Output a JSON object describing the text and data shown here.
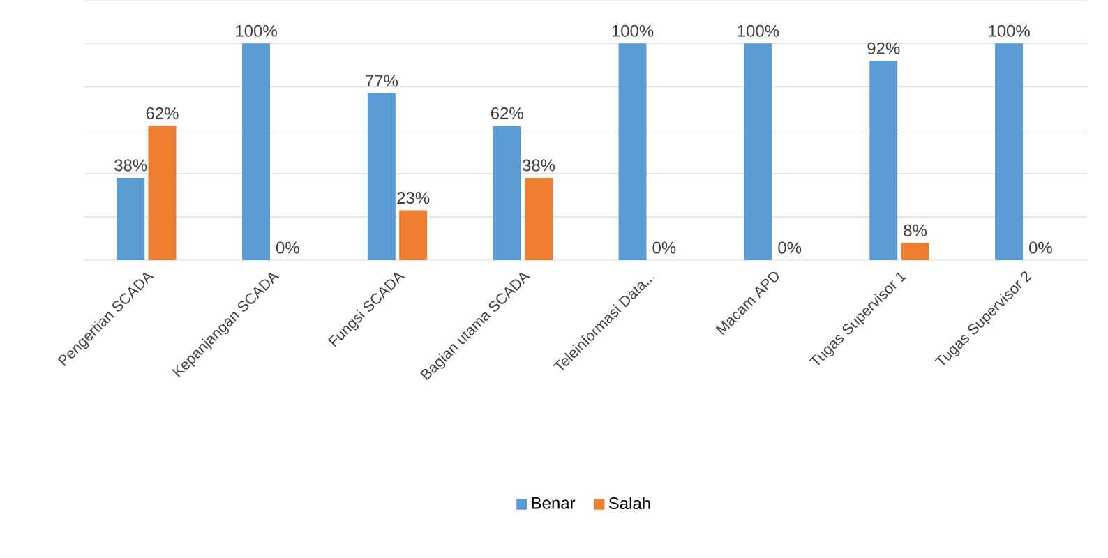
{
  "chart_data": {
    "type": "bar",
    "categories": [
      "Pengertian SCADA",
      "Kepanjangan SCADA",
      "Fungsi SCADA",
      "Bagian utama SCADA",
      "Teleinformasi Data...",
      "Macam APD",
      "Tugas Supervisor 1",
      "Tugas Supervisor 2"
    ],
    "series": [
      {
        "name": "Benar",
        "color": "#5b9bd5",
        "values": [
          38,
          100,
          77,
          62,
          100,
          100,
          92,
          100
        ],
        "value_labels": [
          "38%",
          "100%",
          "77%",
          "62%",
          "100%",
          "100%",
          "92%",
          "100%"
        ]
      },
      {
        "name": "Salah",
        "color": "#ed7d31",
        "values": [
          62,
          0,
          23,
          38,
          0,
          0,
          8,
          0
        ],
        "value_labels": [
          "62%",
          "0%",
          "23%",
          "38%",
          "0%",
          "0%",
          "8%",
          "0%"
        ]
      }
    ],
    "ylim": [
      0,
      120
    ],
    "yticks": [
      {
        "value": 0,
        "label": null
      },
      {
        "value": 20,
        "label": null
      },
      {
        "value": 40,
        "label": null
      },
      {
        "value": 60,
        "label": null
      },
      {
        "value": 80,
        "label": null
      },
      {
        "value": 100,
        "label": null
      },
      {
        "value": 120,
        "label": null
      }
    ],
    "grid": "y",
    "legend": "bottom",
    "tick_labels": "x"
  }
}
